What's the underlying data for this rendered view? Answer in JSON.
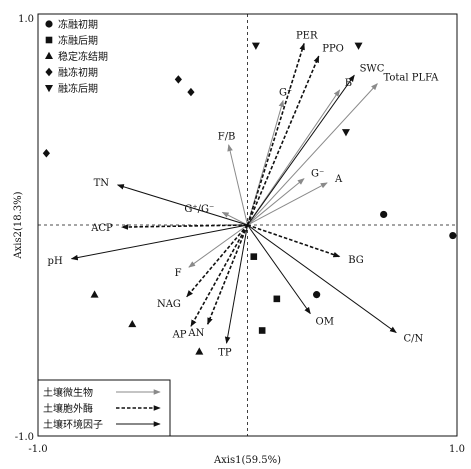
{
  "chart_data": {
    "type": "scatter",
    "subtype": "ordination-biplot",
    "xlabel": "Axis1(59.5%)",
    "ylabel": "Axis2(18.3%)",
    "xlim": [
      -1.0,
      1.0
    ],
    "ylim": [
      -1.0,
      1.0
    ],
    "tick_labels": {
      "xmin": "-1.0",
      "xmax": "1.0",
      "ymin": "-1.0",
      "ymax": "1.0"
    },
    "zero_lines": "dashed",
    "legend_position": "top-left",
    "line_legend_position": "bottom-left",
    "series": [
      {
        "name": "冻融初期",
        "marker": "circle",
        "points": [
          [
            0.65,
            0.05
          ],
          [
            0.98,
            -0.05
          ],
          [
            0.33,
            -0.33
          ]
        ]
      },
      {
        "name": "冻融后期",
        "marker": "square",
        "points": [
          [
            0.03,
            -0.15
          ],
          [
            0.14,
            -0.35
          ],
          [
            0.07,
            -0.5
          ]
        ]
      },
      {
        "name": "稳定冻结期",
        "marker": "triangle-up",
        "points": [
          [
            -0.73,
            -0.33
          ],
          [
            -0.55,
            -0.47
          ],
          [
            -0.23,
            -0.6
          ]
        ]
      },
      {
        "name": "融冻初期",
        "marker": "diamond",
        "points": [
          [
            -0.96,
            0.34
          ],
          [
            -0.33,
            0.69
          ],
          [
            -0.27,
            0.63
          ]
        ]
      },
      {
        "name": "融冻后期",
        "marker": "triangle-down",
        "points": [
          [
            0.04,
            0.85
          ],
          [
            0.53,
            0.85
          ],
          [
            0.47,
            0.44
          ]
        ]
      }
    ],
    "arrow_groups": [
      {
        "name": "土壤微生物",
        "style": "gray-solid",
        "vectors": [
          {
            "label": "G⁺",
            "x": 0.17,
            "y": 0.59
          },
          {
            "label": "B",
            "x": 0.44,
            "y": 0.64
          },
          {
            "label": "Total PLFA",
            "x": 0.62,
            "y": 0.67
          },
          {
            "label": "G⁻",
            "x": 0.27,
            "y": 0.22
          },
          {
            "label": "A",
            "x": 0.38,
            "y": 0.2
          },
          {
            "label": "F/B",
            "x": -0.09,
            "y": 0.38
          },
          {
            "label": "G⁺/G⁻",
            "x": -0.12,
            "y": 0.06
          },
          {
            "label": "F",
            "x": -0.28,
            "y": -0.2
          }
        ]
      },
      {
        "name": "土壤胞外酶",
        "style": "black-dashed",
        "vectors": [
          {
            "label": "PER",
            "x": 0.27,
            "y": 0.86
          },
          {
            "label": "PPO",
            "x": 0.34,
            "y": 0.8
          },
          {
            "label": "ACP",
            "x": -0.6,
            "y": -0.01
          },
          {
            "label": "BG",
            "x": 0.44,
            "y": -0.15
          },
          {
            "label": "NAG",
            "x": -0.29,
            "y": -0.34
          },
          {
            "label": "AP",
            "x": -0.27,
            "y": -0.48
          },
          {
            "label": "AN",
            "x": -0.19,
            "y": -0.47
          }
        ]
      },
      {
        "name": "土壤环境因子",
        "style": "black-solid",
        "vectors": [
          {
            "label": "SWC",
            "x": 0.51,
            "y": 0.71
          },
          {
            "label": "TN",
            "x": -0.62,
            "y": 0.19
          },
          {
            "label": "pH",
            "x": -0.84,
            "y": -0.16
          },
          {
            "label": "OM",
            "x": 0.3,
            "y": -0.42
          },
          {
            "label": "C/N",
            "x": 0.71,
            "y": -0.51
          },
          {
            "label": "TP",
            "x": -0.1,
            "y": -0.56
          }
        ]
      }
    ]
  }
}
